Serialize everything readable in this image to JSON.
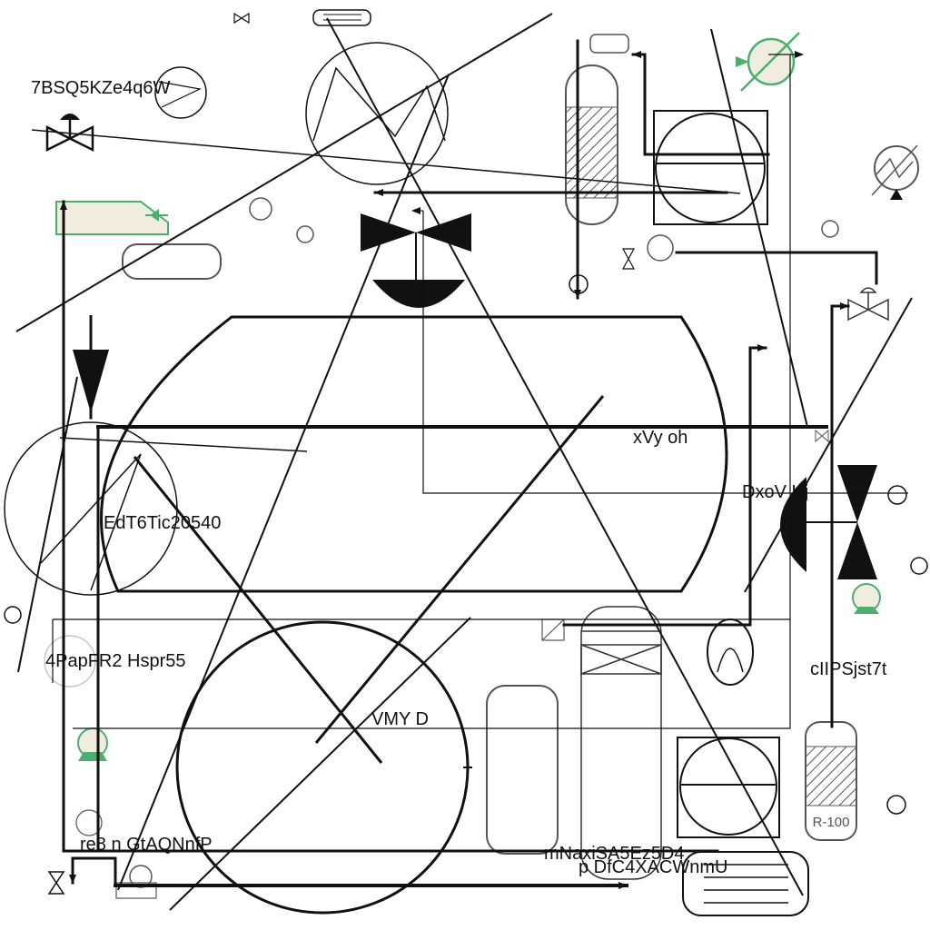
{
  "diagram": {
    "labels": {
      "l1": "7BSQ5KZe4q6W",
      "l2": "xVy oh",
      "l3": "DxoV Hj",
      "l4": "EdT6Tic20540",
      "l5": "4PapFR2 Hspr55",
      "l6": "cIIPSjst7t",
      "l7": "VMY D",
      "l8": "re8 n GtAQNnfP",
      "l9": "mNaxiSA5Ez5D4",
      "l10": "p DfC4XACWnmU"
    },
    "equipment_tag": "R-100"
  },
  "colors": {
    "line": "#111111",
    "green_accent": "#4caf6e",
    "fill_beige": "#f1ece0",
    "gray": "#555555"
  },
  "icons": [
    "gate-valve-icon",
    "control-valve-icon",
    "butterfly-valve-icon",
    "compressor-icon",
    "heat-exchanger-icon",
    "pump-icon",
    "vessel-icon",
    "column-icon",
    "reactor-icon"
  ]
}
